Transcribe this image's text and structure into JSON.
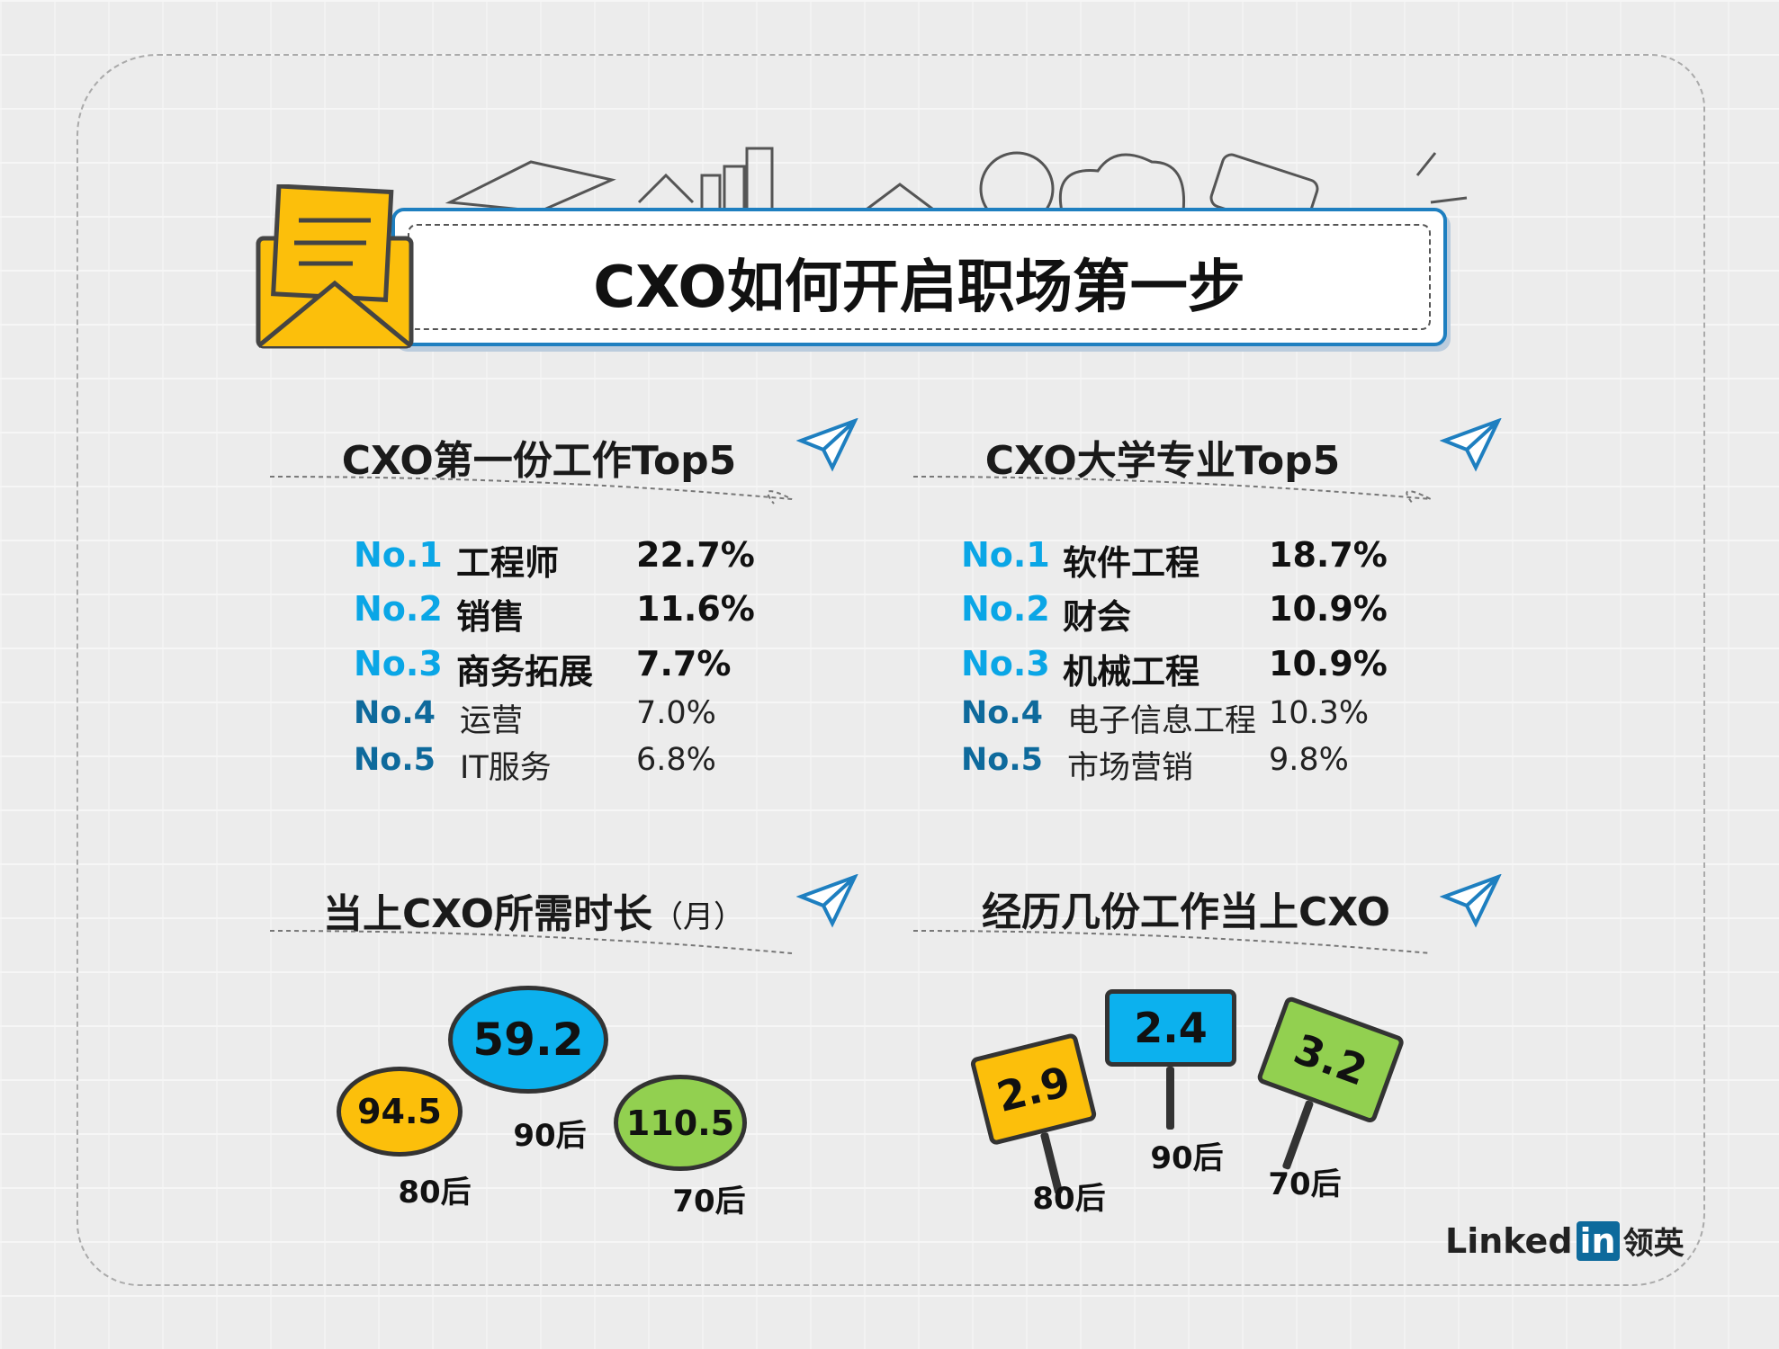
{
  "title": "CXO如何开启职场第一步",
  "sections": {
    "first_job": {
      "heading": "CXO第一份工作Top5",
      "rows": [
        {
          "rank": "No.1",
          "name": "工程师",
          "pct": "22.7%"
        },
        {
          "rank": "No.2",
          "name": "销售",
          "pct": "11.6%"
        },
        {
          "rank": "No.3",
          "name": "商务拓展",
          "pct": "7.7%"
        },
        {
          "rank": "No.4",
          "name": "运营",
          "pct": "7.0%"
        },
        {
          "rank": "No.5",
          "name": "IT服务",
          "pct": "6.8%"
        }
      ]
    },
    "major": {
      "heading": "CXO大学专业Top5",
      "rows": [
        {
          "rank": "No.1",
          "name": "软件工程",
          "pct": "18.7%"
        },
        {
          "rank": "No.2",
          "name": "财会",
          "pct": "10.9%"
        },
        {
          "rank": "No.3",
          "name": "机械工程",
          "pct": "10.9%"
        },
        {
          "rank": "No.4",
          "name": "电子信息工程",
          "pct": "10.3%"
        },
        {
          "rank": "No.5",
          "name": "市场营销",
          "pct": "9.8%"
        }
      ]
    },
    "time": {
      "heading": "当上CXO所需时长",
      "unit": "（月）",
      "items": [
        {
          "value": "94.5",
          "label": "80后",
          "color": "#fcbf0b"
        },
        {
          "value": "59.2",
          "label": "90后",
          "color": "#0cb1ee"
        },
        {
          "value": "110.5",
          "label": "70后",
          "color": "#92d050"
        }
      ]
    },
    "jobs": {
      "heading": "经历几份工作当上CXO",
      "items": [
        {
          "value": "2.9",
          "label": "80后",
          "color": "#fcbf0b"
        },
        {
          "value": "2.4",
          "label": "90后",
          "color": "#0cb1ee"
        },
        {
          "value": "3.2",
          "label": "70后",
          "color": "#92d050"
        }
      ]
    }
  },
  "logo": {
    "brand": "LinkedIn",
    "cn": "领英",
    "in": "in",
    "linked": "Linked"
  }
}
